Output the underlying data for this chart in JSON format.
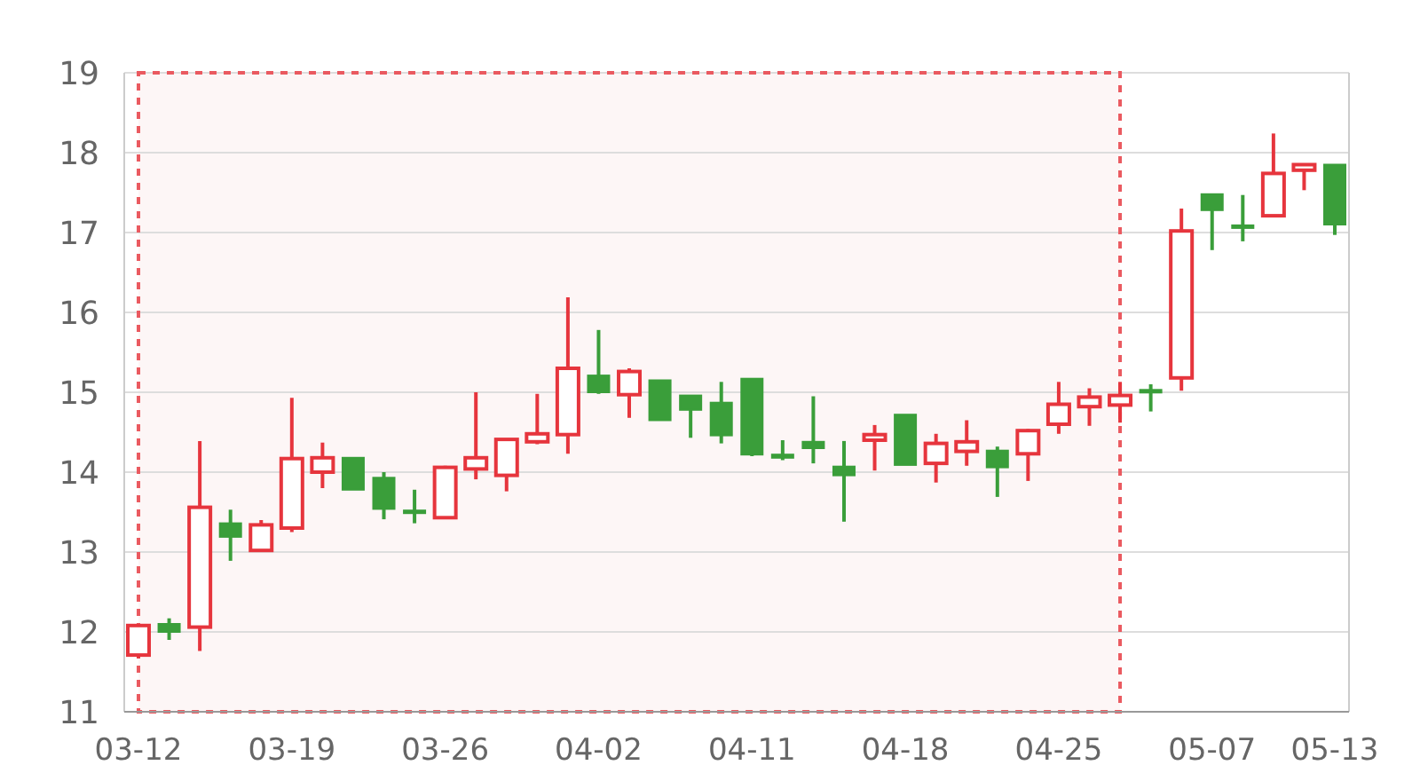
{
  "chart_data": {
    "type": "candlestick",
    "categories": [
      "03-12",
      null,
      null,
      null,
      null,
      "03-19",
      null,
      null,
      null,
      null,
      "03-26",
      null,
      null,
      null,
      null,
      "04-02",
      null,
      null,
      null,
      null,
      "04-11",
      null,
      null,
      null,
      null,
      "04-18",
      null,
      null,
      null,
      null,
      "04-25",
      null,
      null,
      null,
      null,
      "05-07",
      null,
      null,
      null,
      "05-13"
    ],
    "ohlc": [
      [
        11.71,
        12.1,
        11.67,
        12.08
      ],
      [
        12.1,
        12.17,
        11.9,
        12.0
      ],
      [
        12.06,
        14.39,
        11.76,
        13.56
      ],
      [
        13.36,
        13.53,
        12.89,
        13.19
      ],
      [
        13.02,
        13.4,
        13.02,
        13.34
      ],
      [
        13.3,
        14.93,
        13.25,
        14.17
      ],
      [
        14.0,
        14.37,
        13.8,
        14.18
      ],
      [
        14.18,
        14.18,
        13.78,
        13.78
      ],
      [
        13.93,
        14.0,
        13.41,
        13.54
      ],
      [
        13.52,
        13.78,
        13.36,
        13.5
      ],
      [
        13.43,
        14.08,
        13.43,
        14.06
      ],
      [
        14.04,
        15.0,
        13.91,
        14.18
      ],
      [
        13.96,
        14.41,
        13.76,
        14.41
      ],
      [
        14.38,
        14.98,
        14.35,
        14.48
      ],
      [
        14.47,
        16.19,
        14.23,
        15.3
      ],
      [
        15.21,
        15.78,
        14.98,
        15.0
      ],
      [
        14.97,
        15.3,
        14.68,
        15.26
      ],
      [
        15.15,
        15.15,
        14.65,
        14.65
      ],
      [
        14.96,
        14.96,
        14.43,
        14.78
      ],
      [
        14.87,
        15.13,
        14.36,
        14.46
      ],
      [
        15.17,
        15.17,
        14.2,
        14.22
      ],
      [
        14.22,
        14.4,
        14.15,
        14.18
      ],
      [
        14.38,
        14.95,
        14.11,
        14.3
      ],
      [
        14.07,
        14.39,
        13.38,
        13.96
      ],
      [
        14.4,
        14.59,
        14.02,
        14.47
      ],
      [
        14.72,
        14.72,
        14.09,
        14.09
      ],
      [
        14.11,
        14.48,
        13.87,
        14.36
      ],
      [
        14.26,
        14.65,
        14.08,
        14.38
      ],
      [
        14.27,
        14.32,
        13.69,
        14.06
      ],
      [
        14.23,
        14.54,
        13.89,
        14.52
      ],
      [
        14.6,
        15.13,
        14.48,
        14.85
      ],
      [
        14.82,
        15.05,
        14.58,
        14.94
      ],
      [
        14.84,
        15.13,
        14.62,
        14.96
      ],
      [
        15.03,
        15.1,
        14.76,
        15.0
      ],
      [
        15.18,
        17.3,
        15.02,
        17.02
      ],
      [
        17.48,
        17.48,
        16.78,
        17.28
      ],
      [
        17.09,
        17.47,
        16.89,
        17.07
      ],
      [
        17.21,
        18.24,
        17.2,
        17.74
      ],
      [
        17.78,
        17.86,
        17.53,
        17.85
      ],
      [
        17.85,
        17.85,
        16.97,
        17.1
      ]
    ],
    "colors": [
      "#e6353d",
      "#3a9e3a",
      "#e6353d",
      "#3a9e3a",
      "#e6353d",
      "#e6353d",
      "#e6353d",
      "#3a9e3a",
      "#3a9e3a",
      "#3a9e3a",
      "#e6353d",
      "#e6353d",
      "#e6353d",
      "#e6353d",
      "#e6353d",
      "#3a9e3a",
      "#e6353d",
      "#3a9e3a",
      "#3a9e3a",
      "#3a9e3a",
      "#3a9e3a",
      "#3a9e3a",
      "#3a9e3a",
      "#3a9e3a",
      "#e6353d",
      "#3a9e3a",
      "#e6353d",
      "#e6353d",
      "#3a9e3a",
      "#e6353d",
      "#e6353d",
      "#e6353d",
      "#e6353d",
      "#3a9e3a",
      "#e6353d",
      "#3a9e3a",
      "#3a9e3a",
      "#e6353d",
      "#e6353d",
      "#3a9e3a"
    ],
    "ylim": [
      11,
      19
    ],
    "yticks": [
      11,
      12,
      13,
      14,
      15,
      16,
      17,
      18,
      19
    ],
    "grid": "y"
  }
}
